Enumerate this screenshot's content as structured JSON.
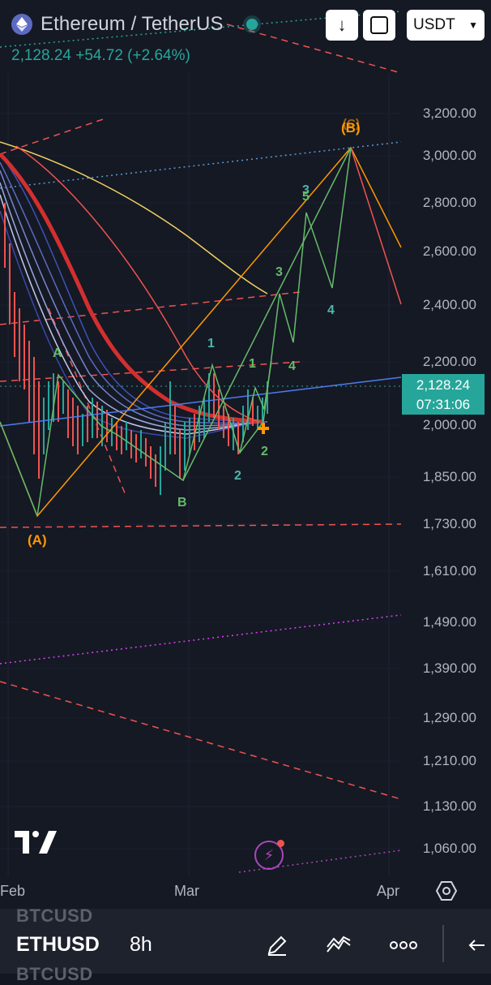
{
  "header": {
    "symbol_title": "Ethereum / TetherUS",
    "price": "2,128.24",
    "change": "+54.72 (+2.64%)",
    "currency": "USDT",
    "download_icon": "arrow-down-icon",
    "fullscreen_icon": "square-icon"
  },
  "price_axis": {
    "ticks": [
      "3,200.00",
      "3,000.00",
      "2,800.00",
      "2,600.00",
      "2,400.00",
      "2,200.00",
      "2,000.00",
      "1,850.00",
      "1,730.00",
      "1,610.00",
      "1,490.00",
      "1,390.00",
      "1,290.00",
      "1,210.00",
      "1,130.00",
      "1,060.00"
    ],
    "current_price": "2,128.24",
    "countdown": "07:31:06"
  },
  "time_axis": {
    "labels": [
      "Feb",
      "Mar",
      "Apr"
    ]
  },
  "wave_labels": {
    "A_paren": "(A)",
    "B_paren": "(B)",
    "C_paren": "(C)",
    "A": "A",
    "B": "B",
    "n1a": "1",
    "n1b": "1",
    "n2a": "2",
    "n2b": "2",
    "n3a": "3",
    "n3b": "3",
    "n4a": "4",
    "n4b": "4",
    "n5": "5"
  },
  "colors": {
    "accent": "#26a69a",
    "background": "#151924",
    "orange": "#ff9800",
    "red": "#ef5350",
    "yellow": "#f0d060",
    "blue": "#4c7cf0",
    "green": "#66bb6a"
  },
  "bottom_bar": {
    "ghost_above": "BTCUSD",
    "symbol": "ETHUSD",
    "interval": "8h",
    "ghost_below": "BTCUSD",
    "tools": [
      "pencil-icon",
      "indicators-icon",
      "more-icon",
      "back-icon"
    ]
  }
}
